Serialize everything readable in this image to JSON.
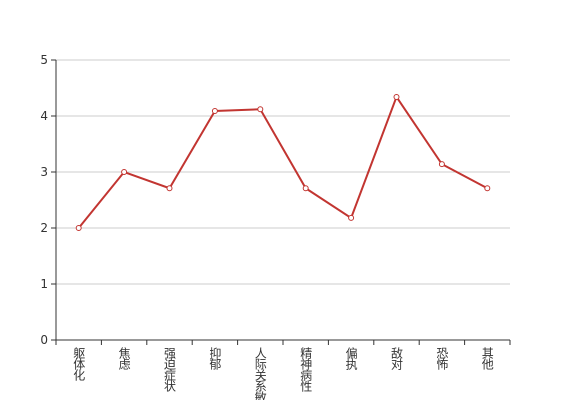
{
  "chart_data": {
    "type": "line",
    "categories": [
      "躯体化",
      "焦虑",
      "强迫症状",
      "抑郁",
      "人际关系敏感",
      "精神病性",
      "偏执",
      "敌对",
      "恐怖",
      "其他"
    ],
    "series": [
      {
        "color": "#c23531",
        "values": [
          2.0,
          3.0,
          2.71,
          4.09,
          4.12,
          2.71,
          2.18,
          4.34,
          3.14,
          2.71
        ]
      }
    ],
    "ylim": [
      0,
      5
    ],
    "yticks": [
      0,
      1,
      2,
      3,
      4,
      5
    ],
    "grid": true
  }
}
